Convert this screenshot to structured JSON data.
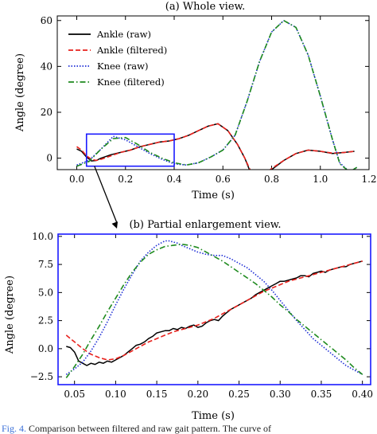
{
  "chart_data": [
    {
      "type": "line",
      "title": "(a) Whole view.",
      "xlabel": "Time (s)",
      "ylabel": "Angle (degree)",
      "xlim": [
        -0.08,
        1.2
      ],
      "ylim": [
        -5,
        62
      ],
      "x_ticks": [
        0.0,
        0.2,
        0.4,
        0.6,
        0.8,
        1.0,
        1.2
      ],
      "x_tick_labels": [
        "0.0",
        "0.2",
        "0.4",
        "0.6",
        "0.8",
        "1.0",
        "1.2"
      ],
      "y_ticks": [
        0,
        20,
        40,
        60
      ],
      "y_tick_labels": [
        "0",
        "20",
        "40",
        "60"
      ],
      "grid": false,
      "legend_position": "upper-left",
      "zoom_box": {
        "x": [
          0.04,
          0.4
        ],
        "y": [
          -3.5,
          10.5
        ],
        "color": "#1a1aff"
      },
      "series": [
        {
          "name": "Ankle (raw)",
          "color": "#000000",
          "dash": "solid",
          "x": [
            0.0,
            0.02,
            0.04,
            0.06,
            0.08,
            0.1,
            0.14,
            0.18,
            0.22,
            0.26,
            0.3,
            0.34,
            0.38,
            0.42,
            0.46,
            0.5,
            0.54,
            0.58,
            0.62,
            0.66,
            0.69,
            0.72,
            0.74,
            0.76,
            0.8,
            0.85,
            0.9,
            0.95,
            1.0,
            1.05,
            1.1,
            1.14
          ],
          "y": [
            4.0,
            3.0,
            0.5,
            -1.2,
            -1.0,
            0.0,
            1.5,
            2.5,
            3.5,
            5.0,
            6.0,
            7.0,
            7.5,
            8.5,
            10.0,
            12.0,
            14.0,
            15.0,
            12.0,
            6.0,
            0.0,
            -8.0,
            -12.0,
            -9.5,
            -5.0,
            -1.0,
            2.0,
            3.5,
            3.0,
            2.0,
            2.5,
            3.0
          ]
        },
        {
          "name": "Ankle (filtered)",
          "color": "#e8211c",
          "dash": "dashed",
          "x": [
            0.0,
            0.02,
            0.04,
            0.06,
            0.08,
            0.1,
            0.14,
            0.18,
            0.22,
            0.26,
            0.3,
            0.34,
            0.38,
            0.42,
            0.46,
            0.5,
            0.54,
            0.58,
            0.62,
            0.66,
            0.69,
            0.72,
            0.74,
            0.76,
            0.8,
            0.85,
            0.9,
            0.95,
            1.0,
            1.05,
            1.1,
            1.14
          ],
          "y": [
            5.0,
            3.5,
            1.0,
            -0.5,
            -1.0,
            -0.5,
            1.0,
            2.5,
            3.5,
            5.0,
            6.0,
            7.0,
            7.5,
            8.5,
            10.0,
            12.0,
            14.0,
            15.0,
            12.0,
            6.0,
            0.0,
            -7.0,
            -9.5,
            -8.0,
            -4.5,
            -1.0,
            2.0,
            3.5,
            3.0,
            2.2,
            2.5,
            3.0
          ]
        },
        {
          "name": "Knee (raw)",
          "color": "#1f2fd6",
          "dash": "dotted",
          "x": [
            0.0,
            0.05,
            0.1,
            0.15,
            0.2,
            0.25,
            0.3,
            0.35,
            0.4,
            0.45,
            0.5,
            0.55,
            0.6,
            0.65,
            0.7,
            0.75,
            0.8,
            0.85,
            0.9,
            0.95,
            1.0,
            1.05,
            1.08,
            1.12,
            1.15
          ],
          "y": [
            -3.0,
            -1.0,
            4.0,
            9.5,
            8.0,
            5.0,
            2.0,
            -0.5,
            -2.5,
            -3.0,
            -2.0,
            0.5,
            3.5,
            10.0,
            25.0,
            42.0,
            55.0,
            60.0,
            57.0,
            45.0,
            27.0,
            8.0,
            -2.0,
            -6.0,
            -4.0
          ]
        },
        {
          "name": "Knee (filtered)",
          "color": "#1e8a1e",
          "dash": "dashdot",
          "x": [
            0.0,
            0.05,
            0.1,
            0.15,
            0.2,
            0.25,
            0.3,
            0.35,
            0.4,
            0.45,
            0.5,
            0.55,
            0.6,
            0.65,
            0.7,
            0.75,
            0.8,
            0.85,
            0.9,
            0.95,
            1.0,
            1.05,
            1.08,
            1.12,
            1.15
          ],
          "y": [
            -3.5,
            -1.5,
            4.0,
            8.5,
            9.0,
            6.0,
            2.5,
            0.0,
            -2.0,
            -3.0,
            -2.0,
            0.5,
            3.5,
            10.0,
            25.0,
            42.0,
            55.0,
            60.0,
            57.0,
            45.0,
            27.0,
            8.0,
            -2.5,
            -6.0,
            -4.0
          ]
        }
      ]
    },
    {
      "type": "line",
      "title": "(b) Partial enlargement view.",
      "xlabel": "Time (s)",
      "ylabel": "Angle (degree)",
      "xlim": [
        0.03,
        0.41
      ],
      "ylim": [
        -3.2,
        10.2
      ],
      "x_ticks": [
        0.05,
        0.1,
        0.15,
        0.2,
        0.25,
        0.3,
        0.35,
        0.4
      ],
      "x_tick_labels": [
        "0.05",
        "0.10",
        "0.15",
        "0.20",
        "0.25",
        "0.30",
        "0.35",
        "0.40"
      ],
      "y_ticks": [
        -2.5,
        0.0,
        2.5,
        5.0,
        7.5,
        10.0
      ],
      "y_tick_labels": [
        "−2.5",
        "0.0",
        "2.5",
        "5.0",
        "7.5",
        "10.0"
      ],
      "grid": false,
      "frame_color": "#1a1aff",
      "series": [
        {
          "name": "Ankle (raw)",
          "color": "#000000",
          "dash": "solid",
          "x": [
            0.04,
            0.045,
            0.05,
            0.055,
            0.06,
            0.065,
            0.07,
            0.075,
            0.08,
            0.085,
            0.09,
            0.095,
            0.1,
            0.105,
            0.11,
            0.115,
            0.12,
            0.125,
            0.13,
            0.135,
            0.14,
            0.145,
            0.15,
            0.155,
            0.16,
            0.165,
            0.17,
            0.175,
            0.18,
            0.185,
            0.19,
            0.195,
            0.2,
            0.205,
            0.21,
            0.215,
            0.22,
            0.225,
            0.23,
            0.235,
            0.24,
            0.245,
            0.25,
            0.255,
            0.26,
            0.265,
            0.27,
            0.275,
            0.28,
            0.285,
            0.29,
            0.295,
            0.3,
            0.305,
            0.31,
            0.315,
            0.32,
            0.325,
            0.33,
            0.335,
            0.34,
            0.345,
            0.35,
            0.355,
            0.36,
            0.365,
            0.37,
            0.375,
            0.38,
            0.385,
            0.39,
            0.395,
            0.4
          ],
          "y": [
            0.2,
            0.1,
            -0.3,
            -1.1,
            -1.3,
            -1.5,
            -1.3,
            -1.4,
            -1.2,
            -1.3,
            -1.1,
            -1.2,
            -1.0,
            -0.8,
            -0.6,
            -0.3,
            0.0,
            0.3,
            0.4,
            0.6,
            0.9,
            1.1,
            1.4,
            1.5,
            1.6,
            1.6,
            1.8,
            1.7,
            1.9,
            1.8,
            2.0,
            2.1,
            1.9,
            2.0,
            2.3,
            2.5,
            2.6,
            2.5,
            2.9,
            3.2,
            3.5,
            3.7,
            3.9,
            4.1,
            4.3,
            4.5,
            4.8,
            5.0,
            5.2,
            5.4,
            5.6,
            5.8,
            6.0,
            6.0,
            6.1,
            6.2,
            6.3,
            6.5,
            6.5,
            6.4,
            6.7,
            6.8,
            6.9,
            6.8,
            7.0,
            7.1,
            7.2,
            7.3,
            7.3,
            7.5,
            7.6,
            7.7,
            7.8
          ]
        },
        {
          "name": "Ankle (filtered)",
          "color": "#e8211c",
          "dash": "dashed",
          "x": [
            0.04,
            0.05,
            0.06,
            0.07,
            0.08,
            0.09,
            0.1,
            0.11,
            0.12,
            0.13,
            0.14,
            0.15,
            0.16,
            0.17,
            0.18,
            0.19,
            0.2,
            0.21,
            0.22,
            0.23,
            0.24,
            0.25,
            0.26,
            0.27,
            0.28,
            0.29,
            0.3,
            0.31,
            0.32,
            0.33,
            0.34,
            0.35,
            0.36,
            0.37,
            0.38,
            0.39,
            0.4
          ],
          "y": [
            1.2,
            0.6,
            0.0,
            -0.5,
            -0.8,
            -1.0,
            -0.9,
            -0.6,
            -0.2,
            0.2,
            0.6,
            0.9,
            1.2,
            1.5,
            1.7,
            1.9,
            2.1,
            2.4,
            2.7,
            3.1,
            3.5,
            3.9,
            4.3,
            4.7,
            5.1,
            5.4,
            5.7,
            6.0,
            6.2,
            6.4,
            6.6,
            6.8,
            7.0,
            7.2,
            7.4,
            7.6,
            7.8
          ]
        },
        {
          "name": "Knee (raw)",
          "color": "#1f2fd6",
          "dash": "dotted",
          "x": [
            0.04,
            0.05,
            0.06,
            0.07,
            0.08,
            0.09,
            0.1,
            0.11,
            0.12,
            0.13,
            0.14,
            0.15,
            0.16,
            0.165,
            0.17,
            0.175,
            0.18,
            0.19,
            0.2,
            0.21,
            0.22,
            0.23,
            0.24,
            0.25,
            0.26,
            0.27,
            0.28,
            0.29,
            0.3,
            0.31,
            0.32,
            0.33,
            0.34,
            0.35,
            0.36,
            0.37,
            0.38,
            0.39,
            0.4
          ],
          "y": [
            -2.3,
            -1.8,
            -1.2,
            -0.2,
            1.0,
            2.4,
            3.9,
            5.3,
            6.6,
            7.8,
            8.6,
            9.2,
            9.6,
            9.6,
            9.5,
            9.4,
            9.2,
            8.9,
            8.6,
            8.4,
            8.3,
            8.3,
            8.0,
            7.6,
            7.2,
            6.6,
            6.0,
            5.2,
            4.3,
            3.4,
            2.5,
            1.7,
            0.9,
            0.3,
            -0.3,
            -0.9,
            -1.5,
            -1.9,
            -2.3
          ]
        },
        {
          "name": "Knee (filtered)",
          "color": "#1e8a1e",
          "dash": "dashdot",
          "x": [
            0.04,
            0.05,
            0.06,
            0.07,
            0.08,
            0.09,
            0.1,
            0.11,
            0.12,
            0.13,
            0.14,
            0.15,
            0.16,
            0.17,
            0.18,
            0.19,
            0.2,
            0.21,
            0.22,
            0.23,
            0.24,
            0.25,
            0.26,
            0.27,
            0.28,
            0.29,
            0.3,
            0.31,
            0.32,
            0.33,
            0.34,
            0.35,
            0.36,
            0.37,
            0.38,
            0.39,
            0.4
          ],
          "y": [
            -2.6,
            -1.6,
            -0.5,
            0.8,
            2.0,
            3.3,
            4.5,
            5.7,
            6.8,
            7.7,
            8.4,
            8.8,
            9.1,
            9.2,
            9.3,
            9.2,
            9.0,
            8.6,
            8.2,
            7.8,
            7.3,
            6.8,
            6.3,
            5.8,
            5.2,
            4.6,
            3.9,
            3.3,
            2.6,
            2.0,
            1.4,
            0.8,
            0.2,
            -0.4,
            -1.0,
            -1.7,
            -2.3
          ]
        }
      ]
    }
  ],
  "caption": {
    "label": "Fig. 4.",
    "text": " Comparison between filtered and raw gait pattern. The curve of"
  }
}
